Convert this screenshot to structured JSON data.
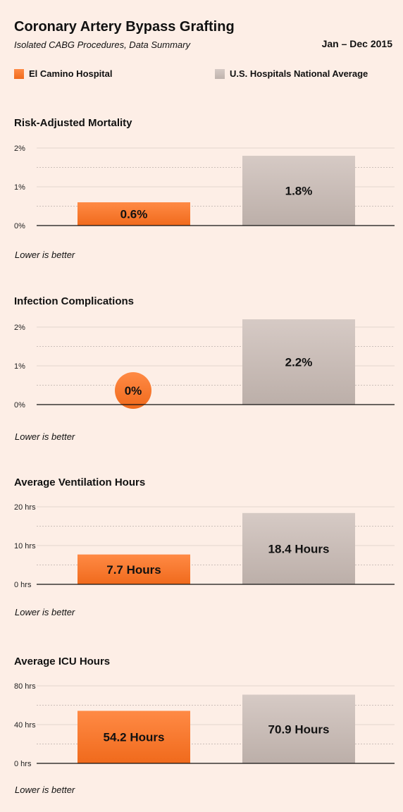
{
  "header": {
    "title": "Coronary Artery Bypass Grafting",
    "subtitle": "Isolated CABG Procedures, Data Summary",
    "date_range": "Jan – Dec 2015"
  },
  "legend": [
    {
      "label": "El Camino Hospital",
      "color": "#f47a30"
    },
    {
      "label": "U.S. Hospitals National Average",
      "color": "#c9bdb8"
    }
  ],
  "chart_data": [
    {
      "type": "bar",
      "title": "Risk-Adjusted Mortality",
      "series_names": [
        "El Camino Hospital",
        "U.S. Hospitals National Average"
      ],
      "values": [
        0.6,
        1.8
      ],
      "value_labels": [
        "0.6%",
        "1.8%"
      ],
      "yticks": [
        "0%",
        "1%",
        "2%"
      ],
      "ylim": [
        0,
        2
      ],
      "note": "Lower is better"
    },
    {
      "type": "bar",
      "title": "Infection Complications",
      "series_names": [
        "El Camino Hospital",
        "U.S. Hospitals National Average"
      ],
      "values": [
        0,
        2.2
      ],
      "value_labels": [
        "0%",
        "2.2%"
      ],
      "yticks": [
        "0%",
        "1%",
        "2%"
      ],
      "ylim": [
        0,
        2
      ],
      "note": "Lower is better"
    },
    {
      "type": "bar",
      "title": "Average Ventilation Hours",
      "series_names": [
        "El Camino Hospital",
        "U.S. Hospitals National Average"
      ],
      "values": [
        7.7,
        18.4
      ],
      "value_labels": [
        "7.7 Hours",
        "18.4 Hours"
      ],
      "yticks": [
        "0 hrs",
        "10 hrs",
        "20 hrs"
      ],
      "ylim": [
        0,
        20
      ],
      "note": "Lower is better"
    },
    {
      "type": "bar",
      "title": "Average ICU Hours",
      "series_names": [
        "El Camino Hospital",
        "U.S. Hospitals National Average"
      ],
      "values": [
        54.2,
        70.9
      ],
      "value_labels": [
        "54.2 Hours",
        "70.9 Hours"
      ],
      "yticks": [
        "0 hrs",
        "40 hrs",
        "80 hrs"
      ],
      "ylim": [
        0,
        80
      ],
      "note": "Lower is better"
    }
  ]
}
